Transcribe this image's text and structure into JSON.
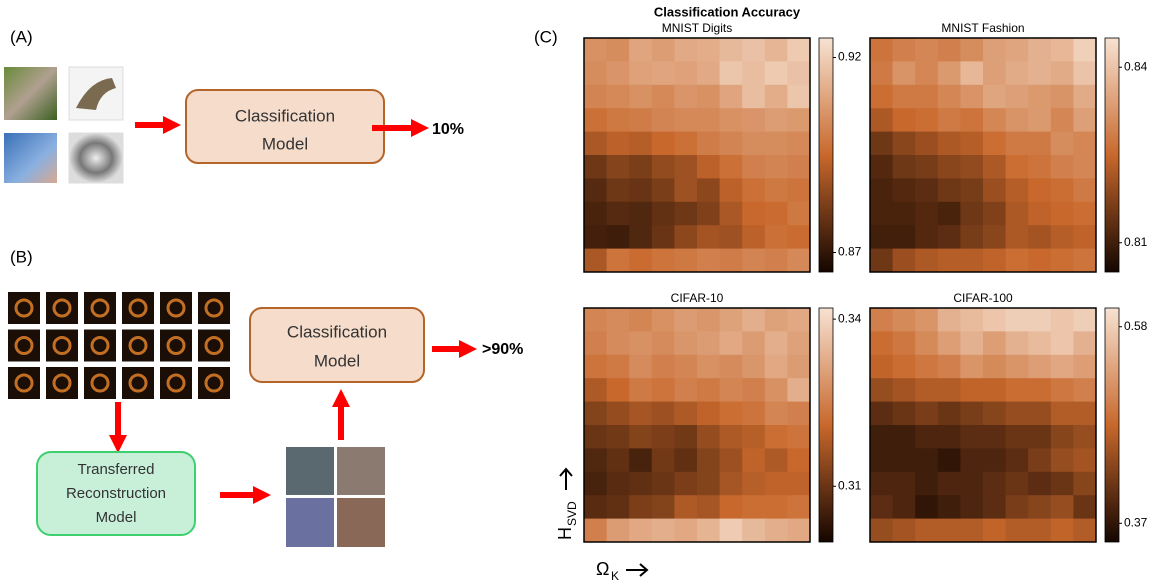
{
  "panel_a": {
    "label": "(A)",
    "model": [
      "Classification",
      "Model"
    ],
    "result": "10%"
  },
  "panel_b": {
    "label": "(B)",
    "model": [
      "Classification",
      "Model"
    ],
    "reconstruction": [
      "Transferred",
      "Reconstruction",
      "Model"
    ],
    "result": ">90%"
  },
  "panel_c": {
    "label": "(C)",
    "title": "Classification Accuracy",
    "y_axis": "H",
    "y_sub": "SVD",
    "x_axis": "Ω",
    "x_sub": "K"
  },
  "chart_data": [
    {
      "type": "heatmap",
      "title": "MNIST Digits",
      "colors": [
        "#140600",
        "#c8682c",
        "#f7e2d2"
      ],
      "zlim": [
        0.865,
        0.925
      ],
      "zticks": [
        0.92,
        0.87
      ],
      "values": [
        [
          0.905,
          0.904,
          0.91,
          0.908,
          0.911,
          0.912,
          0.915,
          0.917,
          0.914,
          0.919
        ],
        [
          0.904,
          0.906,
          0.909,
          0.91,
          0.909,
          0.911,
          0.918,
          0.916,
          0.919,
          0.917
        ],
        [
          0.902,
          0.903,
          0.905,
          0.903,
          0.906,
          0.905,
          0.91,
          0.916,
          0.912,
          0.918
        ],
        [
          0.897,
          0.899,
          0.9,
          0.902,
          0.903,
          0.903,
          0.905,
          0.906,
          0.908,
          0.907
        ],
        [
          0.89,
          0.893,
          0.892,
          0.895,
          0.897,
          0.9,
          0.902,
          0.904,
          0.904,
          0.903
        ],
        [
          0.88,
          0.884,
          0.882,
          0.886,
          0.888,
          0.893,
          0.897,
          0.901,
          0.902,
          0.901
        ],
        [
          0.876,
          0.88,
          0.879,
          0.882,
          0.888,
          0.885,
          0.893,
          0.897,
          0.899,
          0.898
        ],
        [
          0.874,
          0.876,
          0.875,
          0.878,
          0.88,
          0.883,
          0.89,
          0.895,
          0.896,
          0.899
        ],
        [
          0.873,
          0.872,
          0.875,
          0.879,
          0.885,
          0.889,
          0.888,
          0.893,
          0.897,
          0.896
        ],
        [
          0.89,
          0.898,
          0.896,
          0.898,
          0.899,
          0.901,
          0.9,
          0.902,
          0.901,
          0.903
        ]
      ]
    },
    {
      "type": "heatmap",
      "title": "MNIST Fashion",
      "colors": [
        "#140600",
        "#c8682c",
        "#f7e2d2"
      ],
      "zlim": [
        0.805,
        0.845
      ],
      "zticks": [
        0.84,
        0.81
      ],
      "values": [
        [
          0.827,
          0.829,
          0.83,
          0.829,
          0.831,
          0.834,
          0.835,
          0.837,
          0.838,
          0.842
        ],
        [
          0.828,
          0.832,
          0.83,
          0.833,
          0.838,
          0.834,
          0.836,
          0.837,
          0.836,
          0.84
        ],
        [
          0.826,
          0.828,
          0.828,
          0.83,
          0.832,
          0.835,
          0.834,
          0.833,
          0.832,
          0.836
        ],
        [
          0.822,
          0.825,
          0.826,
          0.828,
          0.827,
          0.83,
          0.832,
          0.833,
          0.83,
          0.834
        ],
        [
          0.815,
          0.818,
          0.82,
          0.822,
          0.823,
          0.826,
          0.828,
          0.828,
          0.831,
          0.83
        ],
        [
          0.812,
          0.815,
          0.816,
          0.818,
          0.819,
          0.822,
          0.826,
          0.827,
          0.829,
          0.83
        ],
        [
          0.811,
          0.812,
          0.813,
          0.815,
          0.816,
          0.82,
          0.823,
          0.825,
          0.826,
          0.828
        ],
        [
          0.811,
          0.811,
          0.812,
          0.811,
          0.815,
          0.817,
          0.822,
          0.824,
          0.825,
          0.826
        ],
        [
          0.81,
          0.81,
          0.812,
          0.813,
          0.816,
          0.818,
          0.822,
          0.821,
          0.823,
          0.824
        ],
        [
          0.815,
          0.82,
          0.822,
          0.823,
          0.823,
          0.824,
          0.826,
          0.825,
          0.826,
          0.827
        ]
      ]
    },
    {
      "type": "heatmap",
      "title": "CIFAR-10",
      "colors": [
        "#140600",
        "#c8682c",
        "#f7e2d2"
      ],
      "zlim": [
        0.3,
        0.342
      ],
      "zticks": [
        0.34,
        0.31
      ],
      "values": [
        [
          0.326,
          0.327,
          0.326,
          0.328,
          0.33,
          0.329,
          0.331,
          0.333,
          0.331,
          0.332
        ],
        [
          0.325,
          0.327,
          0.328,
          0.327,
          0.329,
          0.33,
          0.332,
          0.33,
          0.333,
          0.331
        ],
        [
          0.323,
          0.324,
          0.327,
          0.325,
          0.326,
          0.328,
          0.327,
          0.329,
          0.332,
          0.33
        ],
        [
          0.318,
          0.321,
          0.324,
          0.323,
          0.325,
          0.324,
          0.326,
          0.325,
          0.328,
          0.333
        ],
        [
          0.313,
          0.315,
          0.317,
          0.316,
          0.318,
          0.32,
          0.322,
          0.323,
          0.326,
          0.325
        ],
        [
          0.31,
          0.311,
          0.313,
          0.312,
          0.311,
          0.315,
          0.318,
          0.319,
          0.322,
          0.323
        ],
        [
          0.307,
          0.309,
          0.306,
          0.311,
          0.309,
          0.313,
          0.316,
          0.32,
          0.318,
          0.321
        ],
        [
          0.306,
          0.308,
          0.309,
          0.31,
          0.312,
          0.313,
          0.317,
          0.319,
          0.32,
          0.32
        ],
        [
          0.308,
          0.309,
          0.312,
          0.313,
          0.318,
          0.317,
          0.321,
          0.322,
          0.322,
          0.323
        ],
        [
          0.325,
          0.33,
          0.332,
          0.333,
          0.332,
          0.334,
          0.338,
          0.335,
          0.333,
          0.332
        ]
      ]
    },
    {
      "type": "heatmap",
      "title": "CIFAR-100",
      "colors": [
        "#140600",
        "#c8682c",
        "#f7e2d2"
      ],
      "zlim": [
        0.35,
        0.6
      ],
      "zticks": [
        0.58,
        0.37
      ],
      "values": [
        [
          0.5,
          0.51,
          0.52,
          0.55,
          0.56,
          0.57,
          0.58,
          0.58,
          0.57,
          0.58
        ],
        [
          0.48,
          0.49,
          0.51,
          0.53,
          0.55,
          0.53,
          0.55,
          0.56,
          0.57,
          0.55
        ],
        [
          0.47,
          0.48,
          0.49,
          0.5,
          0.52,
          0.51,
          0.52,
          0.53,
          0.54,
          0.53
        ],
        [
          0.44,
          0.45,
          0.46,
          0.46,
          0.47,
          0.47,
          0.48,
          0.48,
          0.49,
          0.5
        ],
        [
          0.4,
          0.41,
          0.42,
          0.41,
          0.42,
          0.43,
          0.44,
          0.44,
          0.46,
          0.46
        ],
        [
          0.38,
          0.38,
          0.39,
          0.39,
          0.4,
          0.4,
          0.41,
          0.41,
          0.43,
          0.44
        ],
        [
          0.38,
          0.38,
          0.38,
          0.37,
          0.39,
          0.39,
          0.4,
          0.42,
          0.44,
          0.45
        ],
        [
          0.39,
          0.39,
          0.38,
          0.39,
          0.39,
          0.4,
          0.41,
          0.4,
          0.41,
          0.43
        ],
        [
          0.4,
          0.39,
          0.37,
          0.38,
          0.39,
          0.4,
          0.42,
          0.43,
          0.44,
          0.41
        ],
        [
          0.44,
          0.45,
          0.46,
          0.46,
          0.46,
          0.47,
          0.46,
          0.46,
          0.47,
          0.46
        ]
      ]
    }
  ]
}
